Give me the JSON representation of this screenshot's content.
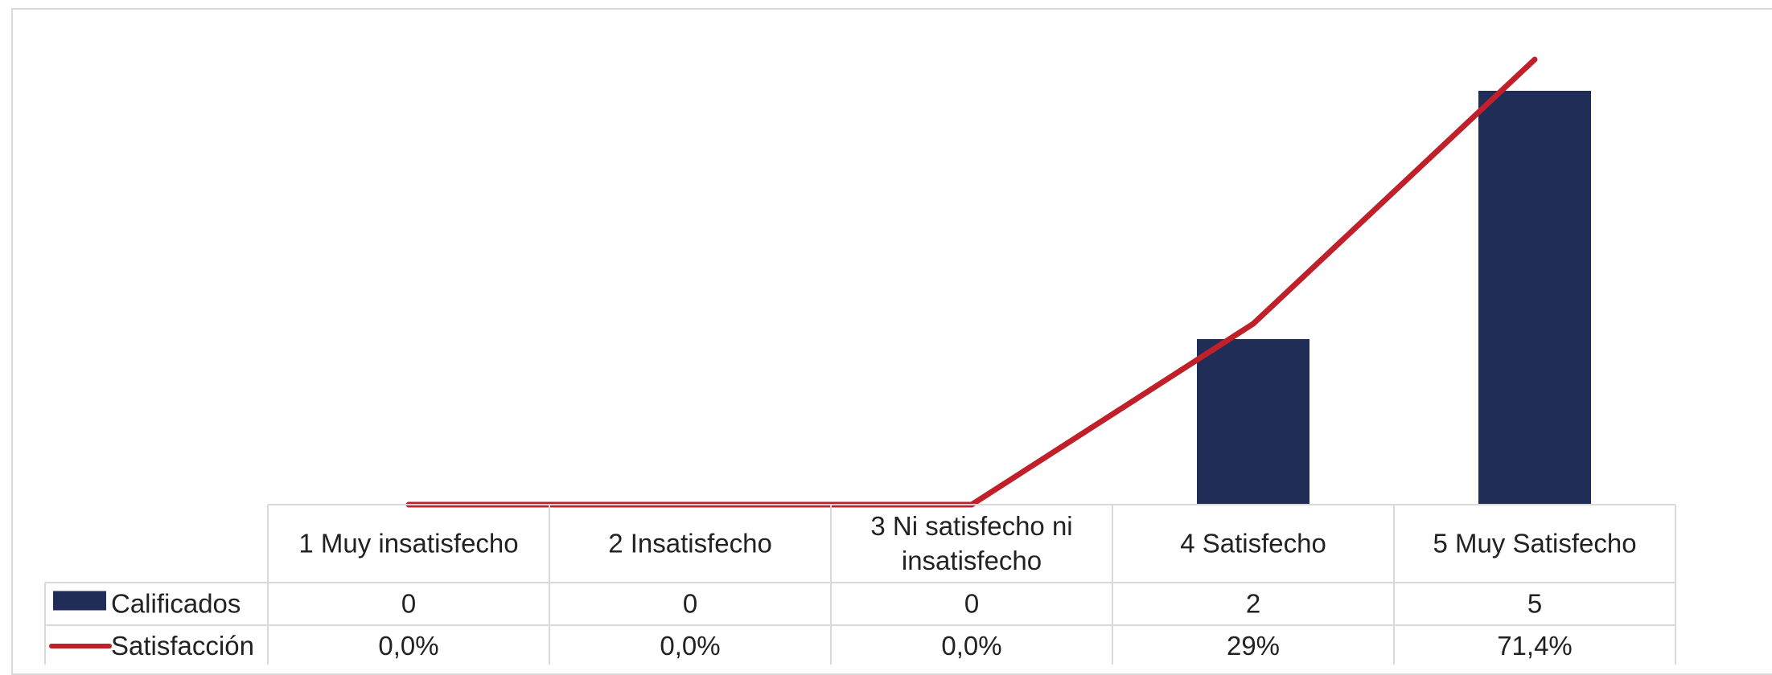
{
  "chart_data": {
    "type": "bar",
    "categories": [
      [
        "1 Muy insatisfecho"
      ],
      [
        "2 Insatisfecho"
      ],
      [
        "3 Ni satisfecho ni",
        "insatisfecho"
      ],
      [
        "4 Satisfecho"
      ],
      [
        "5 Muy Satisfecho"
      ]
    ],
    "series": [
      {
        "name": "Calificados",
        "kind": "bar",
        "color": "#1f2d57",
        "values": [
          0,
          0,
          0,
          2,
          5
        ],
        "table_labels": [
          "0",
          "0",
          "0",
          "2",
          "5"
        ]
      },
      {
        "name": "Satisfacción",
        "kind": "line",
        "color": "#c0202a",
        "values": [
          0.0,
          0.0,
          0.0,
          29,
          71.4
        ],
        "table_labels": [
          "0,0%",
          "0,0%",
          "0,0%",
          "29%",
          "71,4%"
        ]
      }
    ],
    "data_table": true,
    "legend": "in-table"
  }
}
